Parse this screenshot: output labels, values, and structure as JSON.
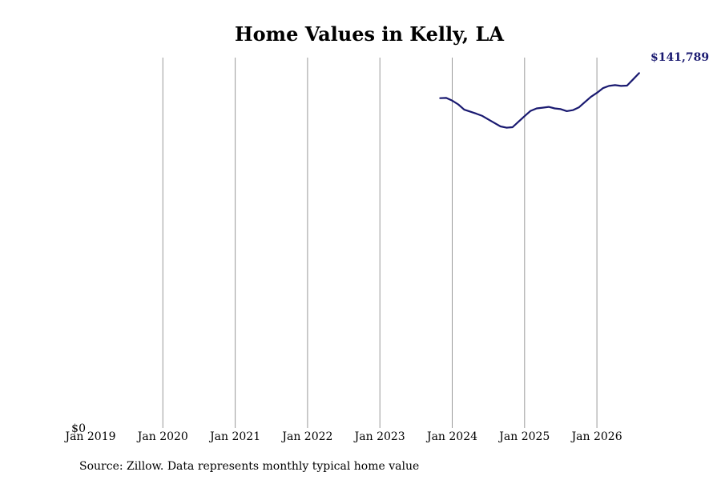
{
  "chart_data": {
    "type": "line",
    "title": "Home Values in Kelly, LA",
    "xlabel": "",
    "ylabel": "",
    "x_ticks": [
      "Jan 2019",
      "Jan 2020",
      "Jan 2021",
      "Jan 2022",
      "Jan 2023",
      "Jan 2024",
      "Jan 2025",
      "Jan 2026"
    ],
    "y_ticks": [
      "$0"
    ],
    "ylim": [
      0,
      148000
    ],
    "grid": "vertical",
    "end_label": "$141,789",
    "line_color": "#191970",
    "series": [
      {
        "x": [
          "2023-11",
          "2023-12",
          "2024-01",
          "2024-02",
          "2024-03",
          "2024-04",
          "2024-05",
          "2024-06",
          "2024-07",
          "2024-08",
          "2024-09",
          "2024-10",
          "2024-11",
          "2024-12",
          "2025-01",
          "2025-02",
          "2025-03",
          "2025-04",
          "2025-05",
          "2025-06",
          "2025-07",
          "2025-08",
          "2025-09",
          "2025-10",
          "2025-11",
          "2025-12",
          "2026-01",
          "2026-02",
          "2026-03",
          "2026-04",
          "2026-05",
          "2026-06",
          "2026-07",
          "2026-08"
        ],
        "values": [
          131800,
          131900,
          130800,
          129300,
          127200,
          126400,
          125600,
          124700,
          123300,
          121900,
          120500,
          120000,
          120200,
          122400,
          124600,
          126700,
          127700,
          128000,
          128300,
          127700,
          127400,
          126600,
          127000,
          128100,
          130200,
          132300,
          133900,
          135800,
          136700,
          137000,
          136700,
          136800,
          139300,
          141789
        ]
      }
    ]
  },
  "footer": {
    "source": "Source: Zillow. Data represents monthly typical home value"
  }
}
